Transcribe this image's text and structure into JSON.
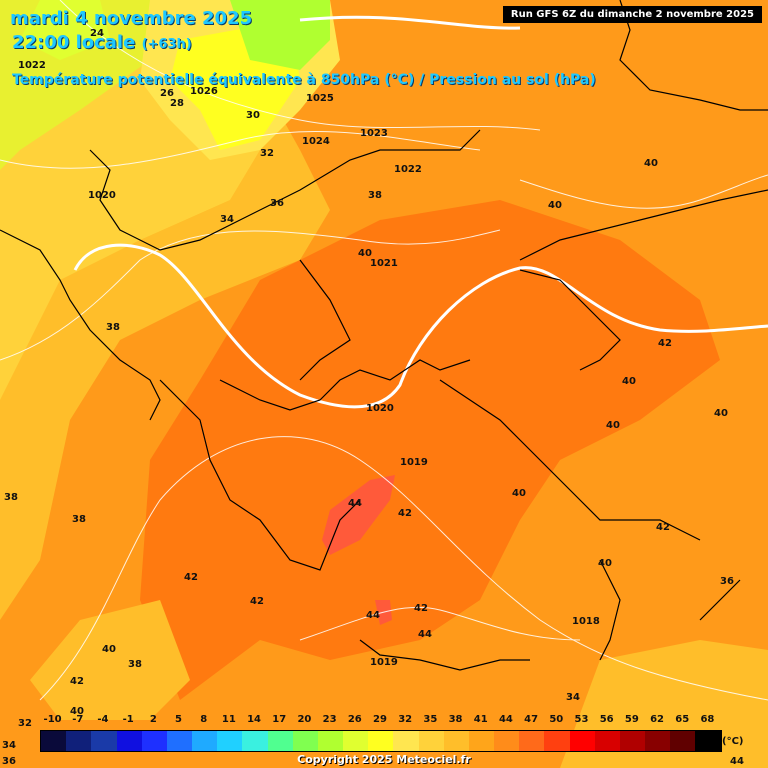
{
  "header": {
    "date_line": "mardi 4 novembre 2025",
    "time_line": "22:00 locale",
    "lead_time": "(+63h)",
    "field_title": "Température potentielle équivalente à 850hPa (°C) / Pression au sol (hPa)",
    "run_info": "Run GFS 6Z du dimanche 2 novembre 2025"
  },
  "pressure_labels": [
    "1022",
    "1026",
    "1025",
    "1024",
    "1023",
    "1022",
    "1021",
    "1020",
    "1020",
    "1019",
    "1019",
    "1018"
  ],
  "theta_labels": [
    "24",
    "26",
    "28",
    "30",
    "32",
    "34",
    "36",
    "38",
    "38",
    "38",
    "38",
    "40",
    "40",
    "40",
    "40",
    "40",
    "40",
    "40",
    "40",
    "40",
    "42",
    "42",
    "42",
    "42",
    "42",
    "42",
    "44",
    "44",
    "44",
    "36",
    "38",
    "34",
    "32",
    "36",
    "34",
    "40",
    "42",
    "44"
  ],
  "legend": {
    "ticks": [
      "-10",
      "-7",
      "-4",
      "-1",
      "2",
      "5",
      "8",
      "11",
      "14",
      "17",
      "20",
      "23",
      "26",
      "29",
      "32",
      "35",
      "38",
      "41",
      "44",
      "47",
      "50",
      "53",
      "56",
      "59",
      "62",
      "65",
      "68"
    ],
    "unit": "(°C)",
    "colors": [
      "#0a0a3a",
      "#10207a",
      "#1a3aa8",
      "#1010e0",
      "#1e30ff",
      "#1f6fff",
      "#1faaff",
      "#20d0ff",
      "#3af0e0",
      "#50ff90",
      "#80ff50",
      "#b0ff30",
      "#e0ff30",
      "#ffff20",
      "#ffe650",
      "#ffd23a",
      "#ffbe2a",
      "#ffa51a",
      "#ff8c1a",
      "#ff6a1a",
      "#ff4010",
      "#ff0000",
      "#d80000",
      "#b00000",
      "#880000",
      "#600000",
      "#000000"
    ]
  },
  "copyright": "Copyright 2025 Meteociel.fr"
}
